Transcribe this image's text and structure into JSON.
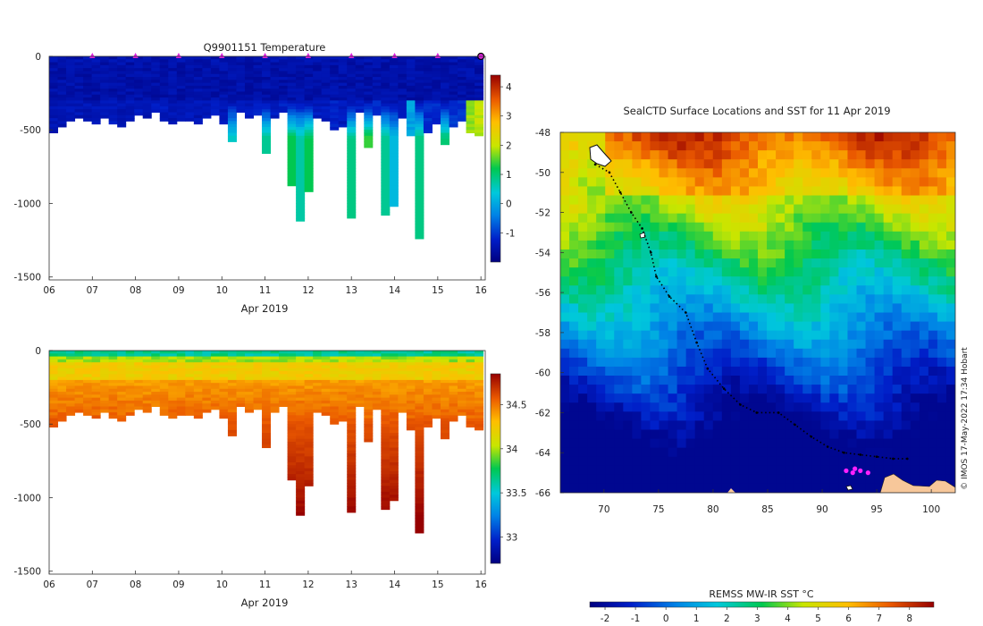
{
  "chart_data": [
    {
      "type": "heatmap",
      "title": "Q9901151  Temperature",
      "xlabel": "Apr 2019",
      "ylabel": "",
      "x_tick_labels": [
        "06",
        "07",
        "08",
        "09",
        "10",
        "11",
        "12",
        "13",
        "14",
        "15",
        "16"
      ],
      "x_tick_values": [
        6,
        7,
        8,
        9,
        10,
        11,
        12,
        13,
        14,
        15,
        16
      ],
      "xlim": [
        6,
        16.1
      ],
      "y_tick_labels": [
        "0",
        "-500",
        "-1000",
        "-1500"
      ],
      "y_tick_values": [
        0,
        -500,
        -1000,
        -1500
      ],
      "ylim": [
        -1520,
        0
      ],
      "colorbar_tick_labels": [
        "4",
        "3",
        "2",
        "1",
        "0",
        "-1"
      ],
      "colorbar_tick_values": [
        4,
        3,
        2,
        1,
        0,
        -1
      ],
      "colorbar_range": [
        -2,
        4.4
      ],
      "surface_marker_days": [
        7,
        8,
        9,
        10,
        11,
        12,
        13,
        14,
        15,
        16
      ],
      "profile_max_depths": [
        520,
        470,
        440,
        410,
        430,
        450,
        420,
        460,
        470,
        440,
        400,
        420,
        380,
        440,
        460,
        440,
        430,
        460,
        420,
        400,
        460,
        570,
        380,
        420,
        390,
        650,
        420,
        380,
        880,
        1110,
        910,
        420,
        440,
        500,
        470,
        1100,
        380,
        620,
        400,
        1080,
        1020,
        420,
        530,
        1230,
        520,
        460,
        600,
        470,
        440,
        520,
        530
      ],
      "profile_deep_temperature": [
        -1.6,
        -1.6,
        -1.6,
        -1.6,
        -1.6,
        -1.6,
        -1.6,
        -1.5,
        -1.6,
        -1.6,
        -1.5,
        -1.6,
        -1.5,
        -1.5,
        -1.6,
        -1.5,
        -1.5,
        -1.6,
        -1.5,
        -1.5,
        -1.6,
        0.5,
        -1.4,
        -1.5,
        -1.4,
        0.8,
        -1.5,
        -1.4,
        1.2,
        0.7,
        1.2,
        -1.5,
        -1.5,
        -1.4,
        -1.5,
        0.9,
        -1.4,
        1.4,
        -1.2,
        0.8,
        0.2,
        -1.4,
        -0.2,
        0.9,
        -1.3,
        -1.3,
        1.0,
        -1.2,
        -1.2,
        1.6,
        1.8
      ]
    },
    {
      "type": "heatmap",
      "title": "",
      "xlabel": "Apr 2019",
      "ylabel": "",
      "x_tick_labels": [
        "06",
        "07",
        "08",
        "09",
        "10",
        "11",
        "12",
        "13",
        "14",
        "15",
        "16"
      ],
      "x_tick_values": [
        6,
        7,
        8,
        9,
        10,
        11,
        12,
        13,
        14,
        15,
        16
      ],
      "xlim": [
        6,
        16.1
      ],
      "y_tick_labels": [
        "0",
        "-500",
        "-1000",
        "-1500"
      ],
      "y_tick_values": [
        0,
        -500,
        -1000,
        -1500
      ],
      "ylim": [
        -1520,
        0
      ],
      "colorbar_tick_labels": [
        "34.5",
        "34",
        "33.5",
        "33"
      ],
      "colorbar_tick_values": [
        34.5,
        34,
        33.5,
        33
      ],
      "colorbar_range": [
        32.7,
        34.85
      ]
    },
    {
      "type": "heatmap",
      "title": "SealCTD Surface Locations and SST for 11 Apr 2019",
      "xlabel": "",
      "ylabel": "",
      "x_tick_labels": [
        "70",
        "75",
        "80",
        "85",
        "90",
        "95",
        "100"
      ],
      "x_tick_values": [
        70,
        75,
        80,
        85,
        90,
        95,
        100
      ],
      "xlim": [
        66,
        102.2
      ],
      "y_tick_labels": [
        "-48",
        "-50",
        "-52",
        "-54",
        "-56",
        "-58",
        "-60",
        "-62",
        "-64",
        "-66"
      ],
      "y_tick_values": [
        -48,
        -50,
        -52,
        -54,
        -56,
        -58,
        -60,
        -62,
        -64,
        -66
      ],
      "ylim": [
        -66,
        -48
      ],
      "colorbar_label": "REMSS MW-IR SST °C",
      "colorbar_tick_labels": [
        "-2",
        "-1",
        "0",
        "1",
        "2",
        "3",
        "4",
        "5",
        "6",
        "7",
        "8"
      ],
      "colorbar_tick_values": [
        -2,
        -1,
        0,
        1,
        2,
        3,
        4,
        5,
        6,
        7,
        8
      ],
      "colorbar_range": [
        -2.5,
        8.8
      ],
      "track": [
        [
          69.2,
          -49.6
        ],
        [
          70.5,
          -50.0
        ],
        [
          71.5,
          -51.0
        ],
        [
          72.5,
          -52.0
        ],
        [
          73.5,
          -52.8
        ],
        [
          74.3,
          -54.0
        ],
        [
          74.8,
          -55.2
        ],
        [
          76.0,
          -56.2
        ],
        [
          77.5,
          -57.0
        ],
        [
          78.5,
          -58.5
        ],
        [
          79.5,
          -59.8
        ],
        [
          81.0,
          -60.8
        ],
        [
          82.5,
          -61.6
        ],
        [
          84.0,
          -62.0
        ],
        [
          86.0,
          -62.0
        ],
        [
          87.5,
          -62.6
        ],
        [
          89.0,
          -63.2
        ],
        [
          90.5,
          -63.7
        ],
        [
          92.0,
          -64.0
        ],
        [
          93.5,
          -64.1
        ],
        [
          95.0,
          -64.2
        ],
        [
          96.5,
          -64.3
        ],
        [
          97.8,
          -64.3
        ]
      ],
      "surface_locations": [
        [
          92.2,
          -64.9
        ],
        [
          92.8,
          -65.0
        ],
        [
          93.5,
          -64.9
        ],
        [
          94.2,
          -65.0
        ],
        [
          93.0,
          -64.8
        ]
      ],
      "credit": "© IMOS 17-May-2022 17:34 Hobart"
    }
  ]
}
